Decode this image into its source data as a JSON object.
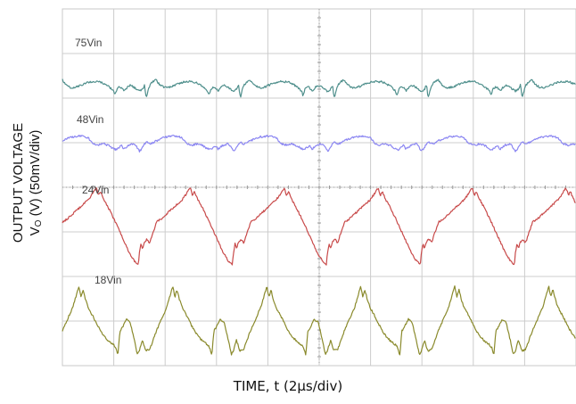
{
  "chart_data": {
    "type": "line",
    "title": "",
    "xlabel": "TIME, t (2µs/div)",
    "ylabel": {
      "line1": "OUTPUT VOLTAGE",
      "line2_prefix": "V",
      "line2_sub": "O",
      "line2_suffix": " (V) (50mV/div)"
    },
    "x_divisions": 10,
    "y_divisions": 8,
    "grid": true,
    "series": [
      {
        "name": "75Vin",
        "color": "#4f8f8c",
        "period": 1.83,
        "x": [
          0,
          0.04,
          0.1,
          0.16,
          0.22,
          0.3,
          0.38,
          0.46,
          0.54,
          0.62,
          0.72,
          0.82,
          0.9,
          0.96,
          1.0,
          1.02,
          1.04,
          1.06,
          1.08,
          1.12,
          1.16,
          1.2,
          1.26,
          1.32,
          1.4,
          1.5,
          1.56,
          1.6,
          1.62,
          1.64,
          1.66,
          1.7,
          1.76,
          1.83
        ],
        "y": [
          0.3,
          0.12,
          -0.02,
          -0.1,
          -0.1,
          -0.05,
          0.05,
          0.14,
          0.2,
          0.22,
          0.2,
          0.1,
          -0.05,
          -0.2,
          -0.3,
          -0.52,
          -0.4,
          -0.22,
          -0.12,
          -0.06,
          -0.14,
          -0.28,
          -0.1,
          0.02,
          -0.1,
          -0.3,
          -0.2,
          0.05,
          -0.45,
          -0.6,
          -0.35,
          0.0,
          0.22,
          0.3
        ]
      },
      {
        "name": "48Vin",
        "color": "#8b86f2",
        "period": 1.83,
        "x": [
          0,
          0.05,
          0.1,
          0.15,
          0.2,
          0.25,
          0.3,
          0.35,
          0.4,
          0.45,
          0.5,
          0.55,
          0.6,
          0.7,
          0.8,
          0.9,
          1.0,
          1.05,
          1.1,
          1.15,
          1.2,
          1.3,
          1.4,
          1.45,
          1.5,
          1.55,
          1.6,
          1.65,
          1.7,
          1.76,
          1.83
        ],
        "y": [
          0.05,
          0.12,
          0.18,
          0.22,
          0.26,
          0.28,
          0.3,
          0.3,
          0.28,
          0.26,
          0.22,
          0.05,
          -0.1,
          -0.18,
          -0.1,
          -0.2,
          -0.38,
          -0.42,
          -0.3,
          -0.2,
          -0.38,
          -0.18,
          -0.1,
          -0.28,
          -0.5,
          -0.35,
          -0.1,
          -0.02,
          -0.12,
          -0.05,
          0.05
        ]
      },
      {
        "name": "24Vin",
        "color": "#c84a4a",
        "period": 1.83,
        "x": [
          0,
          0.1,
          0.2,
          0.3,
          0.4,
          0.5,
          0.58,
          0.62,
          0.66,
          0.7,
          0.74,
          0.8,
          0.9,
          1.0,
          1.1,
          1.2,
          1.3,
          1.4,
          1.48,
          1.5,
          1.53,
          1.56,
          1.6,
          1.65,
          1.7,
          1.75,
          1.8,
          1.83
        ],
        "y": [
          0.06,
          0.14,
          0.24,
          0.34,
          0.44,
          0.54,
          0.66,
          0.74,
          0.8,
          0.64,
          0.72,
          0.56,
          0.36,
          0.14,
          -0.1,
          -0.34,
          -0.58,
          -0.76,
          -0.84,
          -0.6,
          -0.4,
          -0.5,
          -0.35,
          -0.3,
          -0.38,
          -0.2,
          -0.05,
          0.06
        ]
      },
      {
        "name": "18Vin",
        "color": "#8a8a2c",
        "period": 1.83,
        "x": [
          0,
          0.1,
          0.2,
          0.28,
          0.32,
          0.36,
          0.4,
          0.44,
          0.5,
          0.6,
          0.7,
          0.8,
          0.9,
          1.0,
          1.04,
          1.08,
          1.12,
          1.18,
          1.24,
          1.32,
          1.38,
          1.42,
          1.46,
          1.5,
          1.56,
          1.62,
          1.7,
          1.78,
          1.83
        ],
        "y": [
          -0.4,
          -0.15,
          0.1,
          0.4,
          0.55,
          0.32,
          0.48,
          0.3,
          0.1,
          -0.1,
          -0.32,
          -0.5,
          -0.62,
          -0.7,
          -0.76,
          -0.92,
          -0.4,
          -0.3,
          -0.15,
          -0.22,
          -0.5,
          -0.7,
          -0.9,
          -0.82,
          -0.6,
          -0.82,
          -0.8,
          -0.55,
          -0.4
        ]
      }
    ]
  }
}
